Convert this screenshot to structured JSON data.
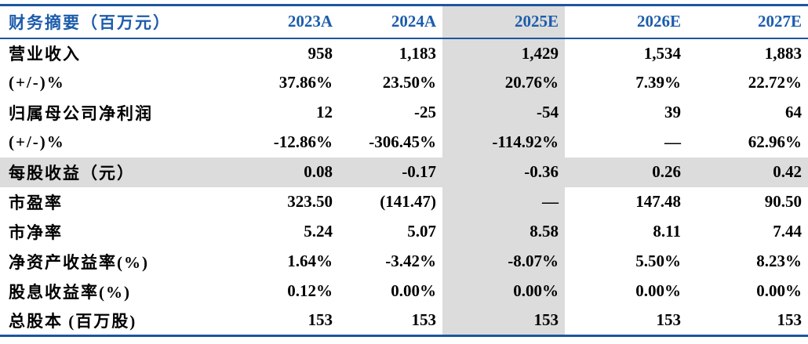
{
  "table": {
    "header": {
      "label": "财务摘要（百万元）",
      "columns": [
        "2023A",
        "2024A",
        "2025E",
        "2026E",
        "2027E"
      ]
    },
    "highlight_column": "2025E",
    "rows": [
      {
        "label": "营业收入",
        "highlight": false,
        "values": [
          "958",
          "1,183",
          "1,429",
          "1,534",
          "1,883"
        ]
      },
      {
        "label": "(+/-)%",
        "highlight": false,
        "values": [
          "37.86%",
          "23.50%",
          "20.76%",
          "7.39%",
          "22.72%"
        ]
      },
      {
        "label": "归属母公司净利润",
        "highlight": false,
        "values": [
          "12",
          "-25",
          "-54",
          "39",
          "64"
        ]
      },
      {
        "label": "(+/-)%",
        "highlight": false,
        "values": [
          "-12.86%",
          "-306.45%",
          "-114.92%",
          "—",
          "62.96%"
        ]
      },
      {
        "label": "每股收益（元）",
        "highlight": true,
        "values": [
          "0.08",
          "-0.17",
          "-0.36",
          "0.26",
          "0.42"
        ]
      },
      {
        "label": "市盈率",
        "highlight": false,
        "values": [
          "323.50",
          "(141.47)",
          "—",
          "147.48",
          "90.50"
        ]
      },
      {
        "label": "市净率",
        "highlight": false,
        "values": [
          "5.24",
          "5.07",
          "8.58",
          "8.11",
          "7.44"
        ]
      },
      {
        "label": "净资产收益率(%)",
        "highlight": false,
        "values": [
          "1.64%",
          "-3.42%",
          "-8.07%",
          "5.50%",
          "8.23%"
        ]
      },
      {
        "label": "股息收益率(%)",
        "highlight": false,
        "values": [
          "0.12%",
          "0.00%",
          "0.00%",
          "0.00%",
          "0.00%"
        ]
      },
      {
        "label": "总股本 (百万股)",
        "highlight": false,
        "values": [
          "153",
          "153",
          "153",
          "153",
          "153"
        ]
      }
    ],
    "colors": {
      "header_text": "#1c5cac",
      "border_line": "#1c56a0",
      "highlight_bg": "#dcdcdc",
      "body_text": "#000000"
    }
  }
}
